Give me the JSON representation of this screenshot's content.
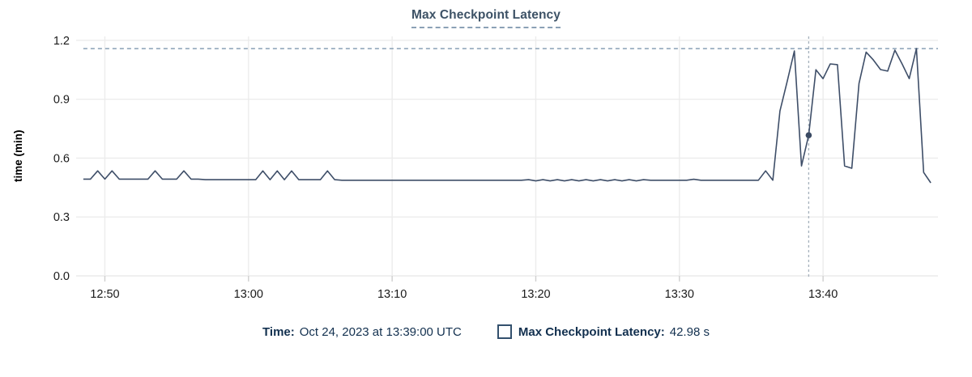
{
  "title": "Max Checkpoint Latency",
  "footer": {
    "time_label": "Time:",
    "time_value": "Oct 24, 2023 at 13:39:00 UTC",
    "series_label": "Max Checkpoint Latency:",
    "series_value": "42.98 s"
  },
  "colors": {
    "line": "#3e4e68",
    "marker": "#3a4a63",
    "max_dashed_line": "#7d96ad",
    "crosshair": "#a6b1bc",
    "gridline": "#ececec",
    "tick_mark": "#cfcfcf",
    "tick_text": "#1a1a1a",
    "axis_label_text": "#000000",
    "title_text": "#3d5266",
    "footer_text": "#12304f"
  },
  "chart_data": {
    "type": "line",
    "title": "Max Checkpoint Latency",
    "xlabel": "",
    "ylabel": "time (min)",
    "x_domain": [
      "12:48:00",
      "13:48:00"
    ],
    "ylim": [
      0,
      1.22
    ],
    "x_ticks": [
      {
        "time": "12:50:00",
        "label": "12:50"
      },
      {
        "time": "13:00:00",
        "label": "13:00"
      },
      {
        "time": "13:10:00",
        "label": "13:10"
      },
      {
        "time": "13:20:00",
        "label": "13:20"
      },
      {
        "time": "13:30:00",
        "label": "13:30"
      },
      {
        "time": "13:40:00",
        "label": "13:40"
      }
    ],
    "y_ticks": [
      {
        "value": 0.0,
        "label": "0.0"
      },
      {
        "value": 0.3,
        "label": "0.3"
      },
      {
        "value": 0.6,
        "label": "0.6"
      },
      {
        "value": 0.9,
        "label": "0.9"
      },
      {
        "value": 1.2,
        "label": "1.2"
      }
    ],
    "grid": true,
    "max_reference_line": 1.158,
    "crosshair_time": "13:39:00",
    "hover_point": {
      "time": "13:39:00",
      "value_min": 0.7166,
      "value_label": "42.98 s"
    },
    "series": [
      {
        "name": "Max Checkpoint Latency",
        "points": [
          [
            "12:48:30",
            0.493
          ],
          [
            "12:49:00",
            0.493
          ],
          [
            "12:49:30",
            0.535
          ],
          [
            "12:50:00",
            0.493
          ],
          [
            "12:50:30",
            0.535
          ],
          [
            "12:51:00",
            0.493
          ],
          [
            "12:51:30",
            0.493
          ],
          [
            "12:52:00",
            0.493
          ],
          [
            "12:52:30",
            0.493
          ],
          [
            "12:53:00",
            0.493
          ],
          [
            "12:53:30",
            0.535
          ],
          [
            "12:54:00",
            0.493
          ],
          [
            "12:54:30",
            0.493
          ],
          [
            "12:55:00",
            0.493
          ],
          [
            "12:55:30",
            0.535
          ],
          [
            "12:56:00",
            0.493
          ],
          [
            "12:56:30",
            0.493
          ],
          [
            "12:57:00",
            0.49
          ],
          [
            "12:57:30",
            0.49
          ],
          [
            "12:58:00",
            0.49
          ],
          [
            "12:58:30",
            0.49
          ],
          [
            "12:59:00",
            0.49
          ],
          [
            "12:59:30",
            0.49
          ],
          [
            "13:00:00",
            0.49
          ],
          [
            "13:00:30",
            0.49
          ],
          [
            "13:01:00",
            0.535
          ],
          [
            "13:01:30",
            0.49
          ],
          [
            "13:02:00",
            0.535
          ],
          [
            "13:02:30",
            0.49
          ],
          [
            "13:03:00",
            0.535
          ],
          [
            "13:03:30",
            0.49
          ],
          [
            "13:04:00",
            0.49
          ],
          [
            "13:04:30",
            0.49
          ],
          [
            "13:05:00",
            0.49
          ],
          [
            "13:05:30",
            0.535
          ],
          [
            "13:06:00",
            0.49
          ],
          [
            "13:06:30",
            0.487
          ],
          [
            "13:07:00",
            0.487
          ],
          [
            "13:07:30",
            0.487
          ],
          [
            "13:08:00",
            0.487
          ],
          [
            "13:08:30",
            0.487
          ],
          [
            "13:09:00",
            0.487
          ],
          [
            "13:09:30",
            0.487
          ],
          [
            "13:10:00",
            0.487
          ],
          [
            "13:10:30",
            0.487
          ],
          [
            "13:11:00",
            0.487
          ],
          [
            "13:11:30",
            0.487
          ],
          [
            "13:12:00",
            0.487
          ],
          [
            "13:12:30",
            0.487
          ],
          [
            "13:13:00",
            0.487
          ],
          [
            "13:13:30",
            0.487
          ],
          [
            "13:14:00",
            0.487
          ],
          [
            "13:14:30",
            0.487
          ],
          [
            "13:15:00",
            0.487
          ],
          [
            "13:15:30",
            0.487
          ],
          [
            "13:16:00",
            0.487
          ],
          [
            "13:16:30",
            0.487
          ],
          [
            "13:17:00",
            0.487
          ],
          [
            "13:17:30",
            0.487
          ],
          [
            "13:18:00",
            0.487
          ],
          [
            "13:18:30",
            0.487
          ],
          [
            "13:19:00",
            0.487
          ],
          [
            "13:19:30",
            0.49
          ],
          [
            "13:20:00",
            0.484
          ],
          [
            "13:20:30",
            0.49
          ],
          [
            "13:21:00",
            0.484
          ],
          [
            "13:21:30",
            0.49
          ],
          [
            "13:22:00",
            0.484
          ],
          [
            "13:22:30",
            0.49
          ],
          [
            "13:23:00",
            0.484
          ],
          [
            "13:23:30",
            0.49
          ],
          [
            "13:24:00",
            0.484
          ],
          [
            "13:24:30",
            0.49
          ],
          [
            "13:25:00",
            0.484
          ],
          [
            "13:25:30",
            0.49
          ],
          [
            "13:26:00",
            0.484
          ],
          [
            "13:26:30",
            0.49
          ],
          [
            "13:27:00",
            0.484
          ],
          [
            "13:27:30",
            0.49
          ],
          [
            "13:28:00",
            0.487
          ],
          [
            "13:28:30",
            0.487
          ],
          [
            "13:29:00",
            0.487
          ],
          [
            "13:29:30",
            0.487
          ],
          [
            "13:30:00",
            0.487
          ],
          [
            "13:30:30",
            0.487
          ],
          [
            "13:31:00",
            0.492
          ],
          [
            "13:31:30",
            0.487
          ],
          [
            "13:32:00",
            0.487
          ],
          [
            "13:32:30",
            0.487
          ],
          [
            "13:33:00",
            0.487
          ],
          [
            "13:33:30",
            0.487
          ],
          [
            "13:34:00",
            0.487
          ],
          [
            "13:34:30",
            0.487
          ],
          [
            "13:35:00",
            0.487
          ],
          [
            "13:35:30",
            0.487
          ],
          [
            "13:36:00",
            0.535
          ],
          [
            "13:36:30",
            0.487
          ],
          [
            "13:37:00",
            0.84
          ],
          [
            "13:37:30",
            0.99
          ],
          [
            "13:38:00",
            1.146
          ],
          [
            "13:38:30",
            0.56
          ],
          [
            "13:39:00",
            0.7166
          ],
          [
            "13:39:30",
            1.05
          ],
          [
            "13:40:00",
            1.005
          ],
          [
            "13:40:30",
            1.08
          ],
          [
            "13:41:00",
            1.076
          ],
          [
            "13:41:30",
            0.56
          ],
          [
            "13:42:00",
            0.548
          ],
          [
            "13:42:30",
            0.98
          ],
          [
            "13:43:00",
            1.14
          ],
          [
            "13:43:30",
            1.1
          ],
          [
            "13:44:00",
            1.051
          ],
          [
            "13:44:30",
            1.043
          ],
          [
            "13:45:00",
            1.15
          ],
          [
            "13:45:30",
            1.08
          ],
          [
            "13:46:00",
            1.005
          ],
          [
            "13:46:30",
            1.158
          ],
          [
            "13:47:00",
            0.527
          ],
          [
            "13:47:30",
            0.474
          ]
        ]
      }
    ]
  }
}
